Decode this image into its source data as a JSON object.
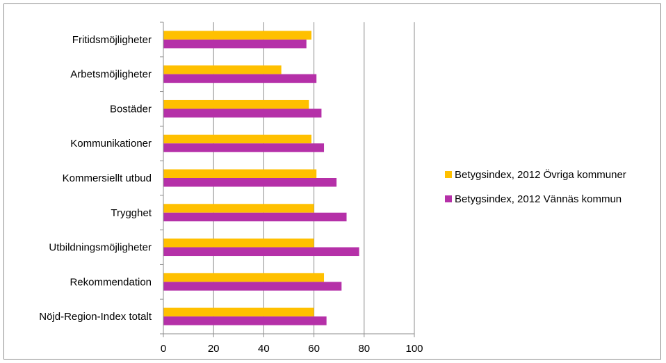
{
  "chart_data": {
    "type": "bar",
    "orientation": "horizontal",
    "categories": [
      "Fritidsmöjligheter",
      "Arbetsmöjligheter",
      "Bostäder",
      "Kommunikationer",
      "Kommersiellt utbud",
      "Trygghet",
      "Utbildningsmöjligheter",
      "Rekommendation",
      "Nöjd-Region-Index totalt"
    ],
    "series": [
      {
        "name": "Betygsindex, 2012 Övriga kommuner",
        "color": "#FFC000",
        "values": [
          59,
          47,
          58,
          59,
          61,
          60,
          60,
          64,
          60
        ]
      },
      {
        "name": "Betygsindex, 2012 Vännäs kommun",
        "color": "#B530A8",
        "values": [
          57,
          61,
          63,
          64,
          69,
          73,
          78,
          71,
          65
        ]
      }
    ],
    "xlim": [
      0,
      100
    ],
    "xticks": [
      "0",
      "20",
      "40",
      "60",
      "80",
      "100"
    ],
    "grid": true,
    "legend": "right",
    "title": "",
    "xlabel": "",
    "ylabel": ""
  }
}
